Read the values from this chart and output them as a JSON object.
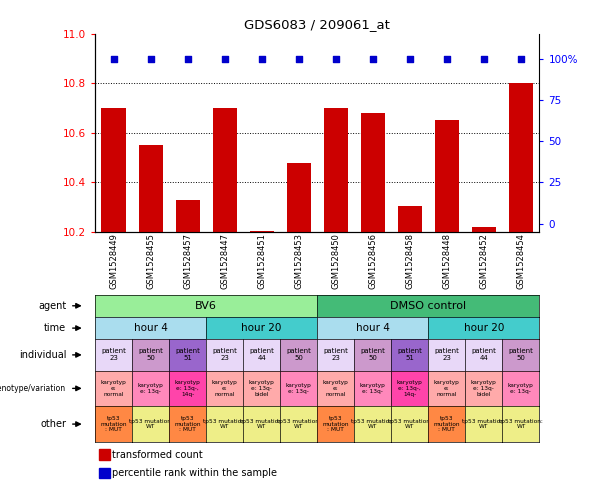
{
  "title": "GDS6083 / 209061_at",
  "samples": [
    "GSM1528449",
    "GSM1528455",
    "GSM1528457",
    "GSM1528447",
    "GSM1528451",
    "GSM1528453",
    "GSM1528450",
    "GSM1528456",
    "GSM1528458",
    "GSM1528448",
    "GSM1528452",
    "GSM1528454"
  ],
  "bar_values": [
    10.7,
    10.55,
    10.33,
    10.7,
    10.205,
    10.48,
    10.7,
    10.68,
    10.305,
    10.65,
    10.22,
    10.8
  ],
  "y_min": 10.2,
  "y_max": 11.0,
  "y_ticks": [
    10.2,
    10.4,
    10.6,
    10.8,
    11.0
  ],
  "y2_ticks": [
    0,
    25,
    50,
    75,
    100
  ],
  "bar_color": "#CC0000",
  "dot_color": "#0000CC",
  "individual_colors": [
    "#E8D8F8",
    "#CC99CC",
    "#9966CC",
    "#E8D8F8",
    "#E8D8F8",
    "#CC99CC",
    "#E8D8F8",
    "#CC99CC",
    "#9966CC",
    "#E8D8F8",
    "#E8D8F8",
    "#CC99CC"
  ],
  "individual_labels": [
    "patient\n23",
    "patient\n50",
    "patient\n51",
    "patient\n23",
    "patient\n44",
    "patient\n50",
    "patient\n23",
    "patient\n50",
    "patient\n51",
    "patient\n23",
    "patient\n44",
    "patient\n50"
  ],
  "genotype_colors": [
    "#FFAAAA",
    "#FF88BB",
    "#FF44AA",
    "#FFAAAA",
    "#FFAAAA",
    "#FF88BB",
    "#FFAAAA",
    "#FF88BB",
    "#FF44AA",
    "#FFAAAA",
    "#FFAAAA",
    "#FF88BB"
  ],
  "genotype_labels": [
    "karyotyp\ne:\nnormal",
    "karyotyp\ne: 13q-",
    "karyotyp\ne: 13q-,\n14q-",
    "karyotyp\ne:\nnormal",
    "karyotyp\ne: 13q-\nbidel",
    "karyotyp\ne: 13q-",
    "karyotyp\ne:\nnormal",
    "karyotyp\ne: 13q-",
    "karyotyp\ne: 13q-,\n14q-",
    "karyotyp\ne:\nnormal",
    "karyotyp\ne: 13q-\nbidel",
    "karyotyp\ne: 13q-"
  ],
  "other_colors": [
    "#FF8844",
    "#EEEE88",
    "#FF8844",
    "#EEEE88",
    "#EEEE88",
    "#EEEE88",
    "#FF8844",
    "#EEEE88",
    "#EEEE88",
    "#FF8844",
    "#EEEE88",
    "#EEEE88"
  ],
  "other_labels": [
    "tp53\nmutation\n: MUT",
    "tp53 mutation:\nWT",
    "tp53\nmutation\n: MUT",
    "tp53 mutation:\nWT",
    "tp53 mutation:\nWT",
    "tp53 mutation:\nWT",
    "tp53\nmutation\n: MUT",
    "tp53 mutation:\nWT",
    "tp53 mutation:\nWT",
    "tp53\nmutation\n: MUT",
    "tp53 mutation:\nWT",
    "tp53 mutation:\nWT"
  ],
  "agent_spans": [
    [
      0,
      6,
      "BV6",
      "#99EE99"
    ],
    [
      6,
      12,
      "DMSO control",
      "#44BB77"
    ]
  ],
  "time_spans": [
    [
      0,
      3,
      "hour 4",
      "#AADDEE"
    ],
    [
      3,
      6,
      "hour 20",
      "#44CCCC"
    ],
    [
      6,
      9,
      "hour 4",
      "#AADDEE"
    ],
    [
      9,
      12,
      "hour 20",
      "#44CCCC"
    ]
  ],
  "row_labels": [
    "agent",
    "time",
    "individual",
    "genotype/variation",
    "other"
  ],
  "legend_red": "transformed count",
  "legend_blue": "percentile rank within the sample"
}
